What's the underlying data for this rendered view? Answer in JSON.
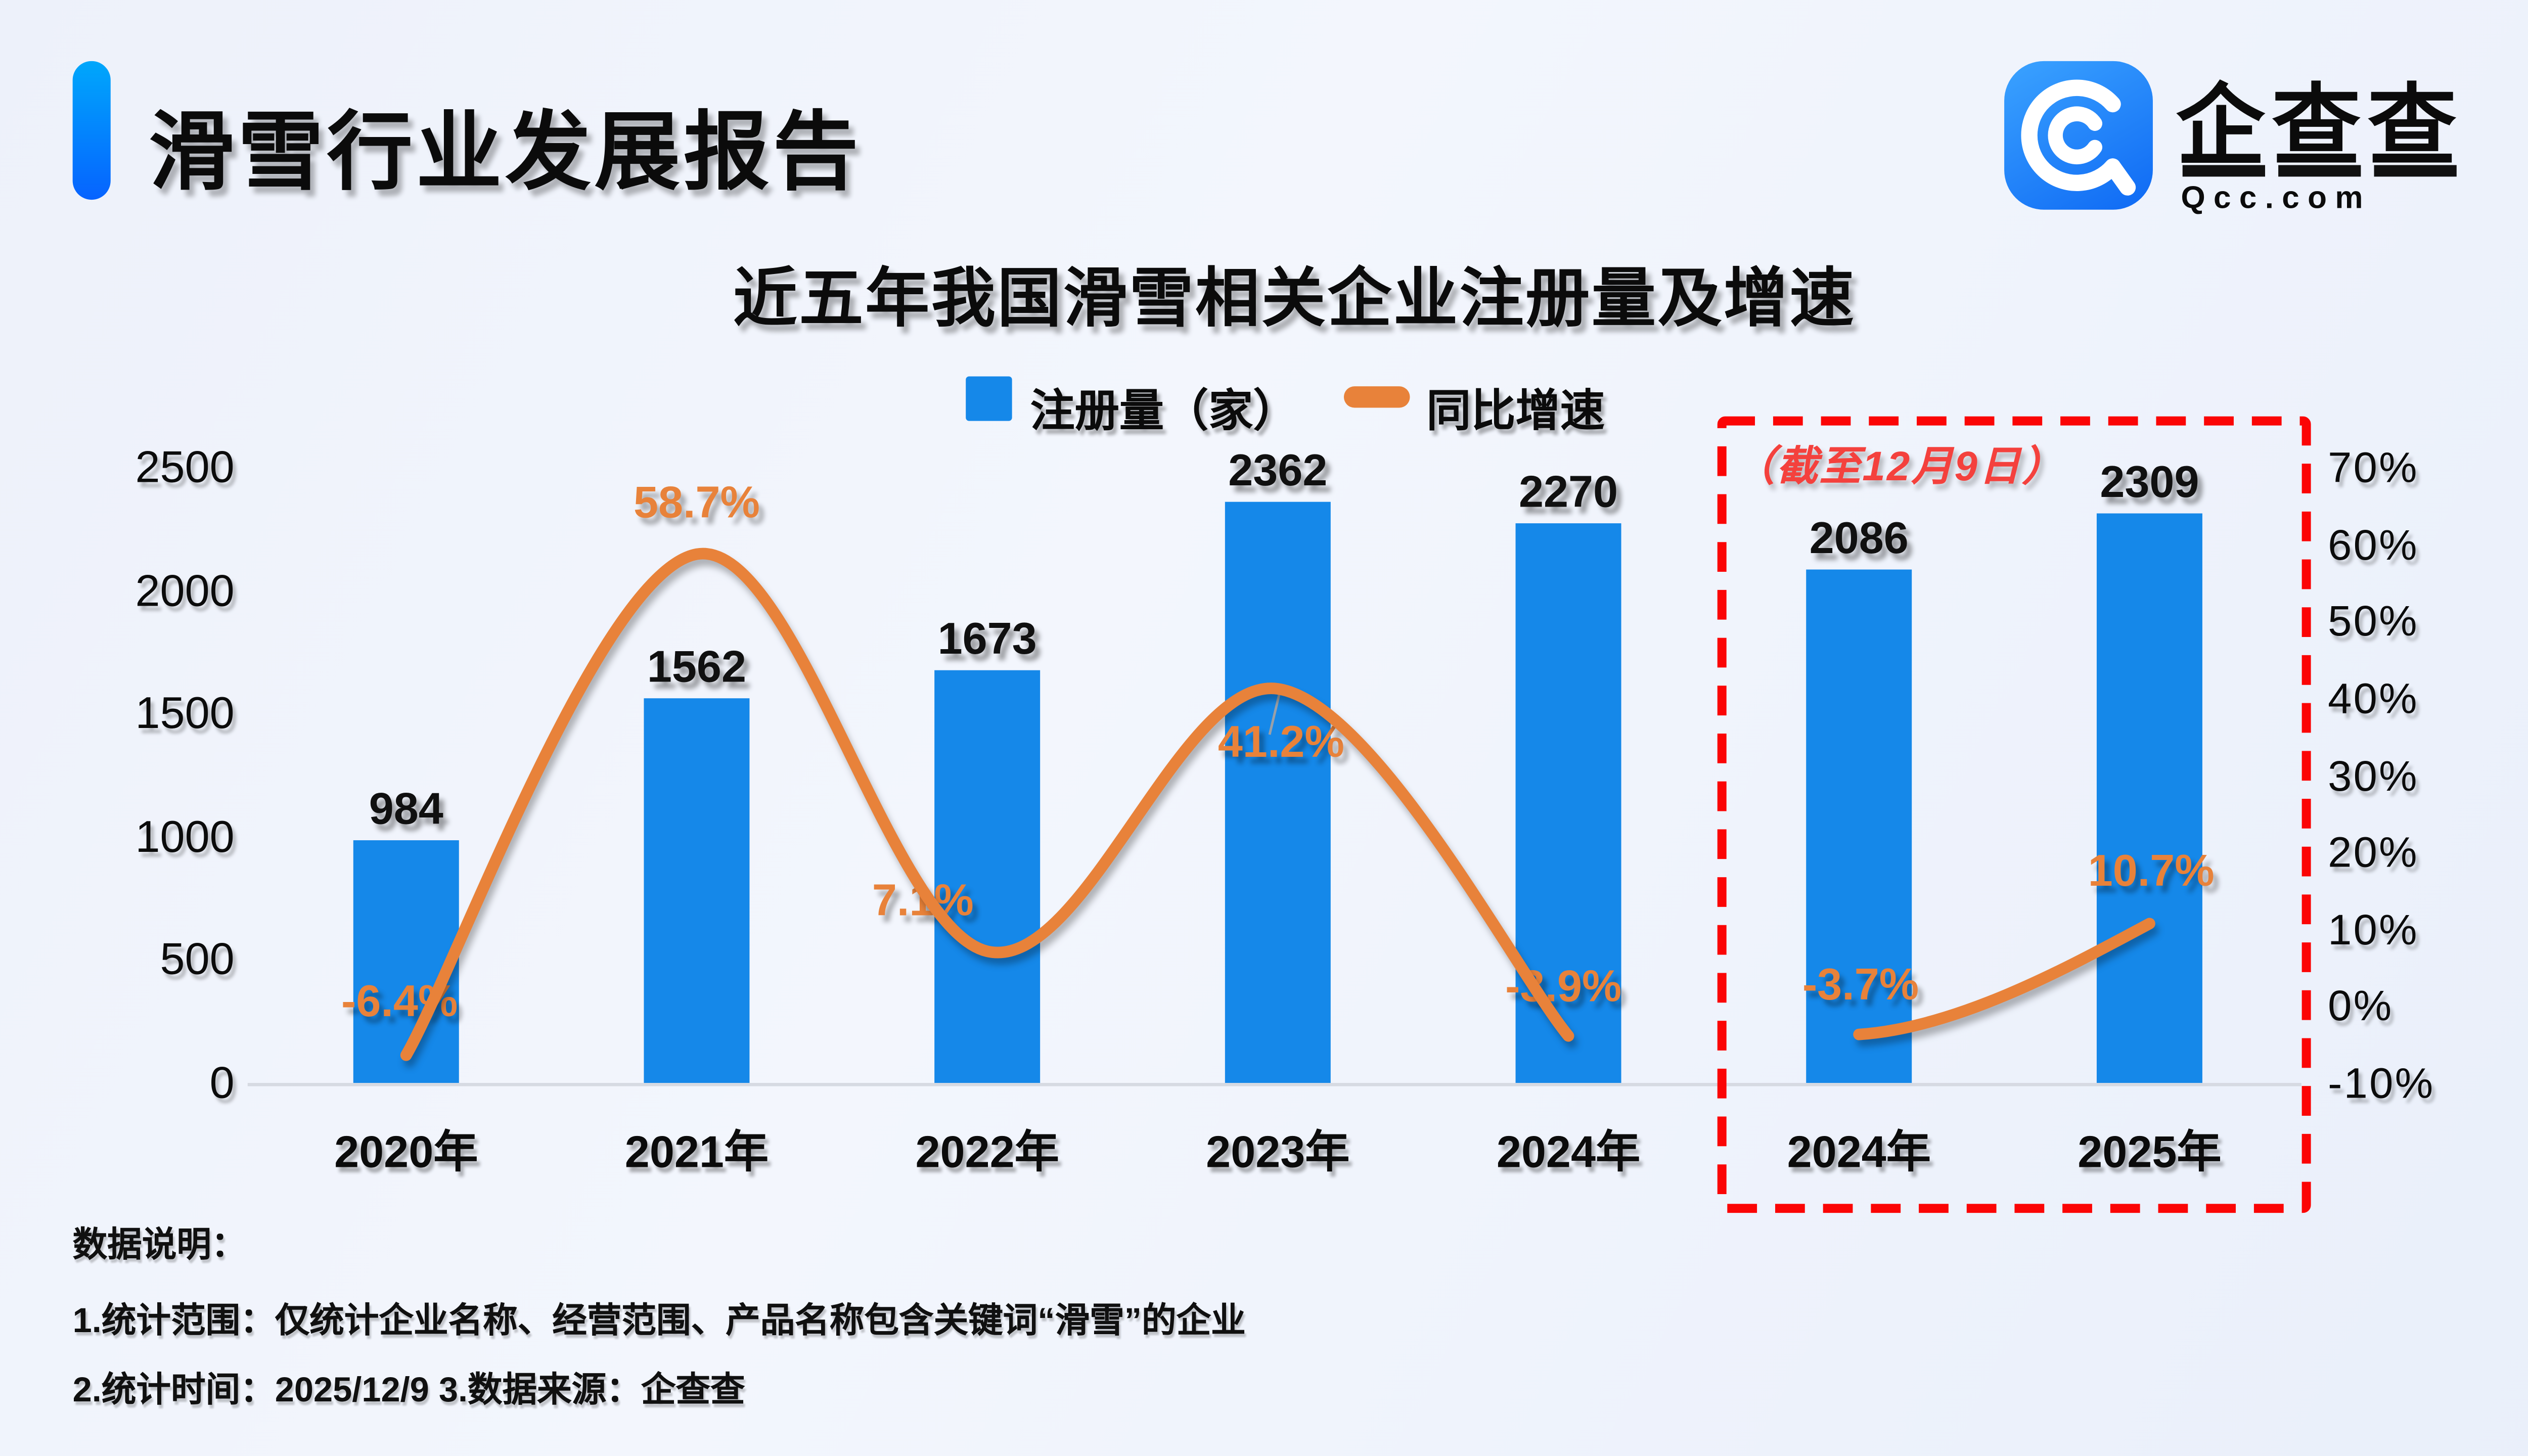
{
  "header": {
    "title": "滑雪行业发展报告"
  },
  "logo": {
    "brand": "企查查",
    "domain": "Qcc.com",
    "icon": "qcc-concentric-q-icon",
    "icon_colors": [
      "#3ba3ff",
      "#0e69f4"
    ]
  },
  "chart_data": {
    "type": "bar",
    "title": "近五年我国滑雪相关企业注册量及增速",
    "categories": [
      "2020年",
      "2021年",
      "2022年",
      "2023年",
      "2024年",
      "2024年",
      "2025年"
    ],
    "series": [
      {
        "name": "注册量（家）",
        "type": "bar",
        "color": "#1588e9",
        "values": [
          984,
          1562,
          1673,
          2362,
          2270,
          2086,
          2309
        ]
      },
      {
        "name": "同比增速",
        "type": "line",
        "color": "#e8823a",
        "unit": "%",
        "values": [
          -6.4,
          58.7,
          7.1,
          41.2,
          -3.9,
          -3.7,
          10.7
        ],
        "labels": [
          "-6.4%",
          "58.7%",
          "7.1%",
          "41.2%",
          "-3.9%",
          "-3.7%",
          "10.7%"
        ],
        "segments": [
          [
            0,
            4
          ],
          [
            5,
            6
          ]
        ]
      }
    ],
    "left_axis": {
      "tick_labels": [
        "0",
        "500",
        "1000",
        "1500",
        "2000",
        "2500"
      ],
      "tick_values": [
        0,
        500,
        1000,
        1500,
        2000,
        2500
      ],
      "min": 0,
      "max": 2500
    },
    "right_axis": {
      "tick_labels": [
        "-10%",
        "0%",
        "10%",
        "20%",
        "30%",
        "40%",
        "50%",
        "60%",
        "70%"
      ],
      "tick_values": [
        -10,
        0,
        10,
        20,
        30,
        40,
        50,
        60,
        70
      ],
      "min": -10,
      "max": 70
    },
    "annotation_box": {
      "label": "（截至12月9日）",
      "start_category_index": 5,
      "end_category_index": 6,
      "border_color": "#fb0505",
      "label_color": "#f4413d"
    },
    "legend_position": "top-center",
    "grid": "baseline-only",
    "baseline_color": "#d6dae2"
  },
  "notes": {
    "heading": "数据说明：",
    "line1": "1.统计范围：仅统计企业名称、经营范围、产品名称包含关键词“滑雪”的企业",
    "line2": "2.统计时间：2025/12/9    3.数据来源：企查查"
  }
}
